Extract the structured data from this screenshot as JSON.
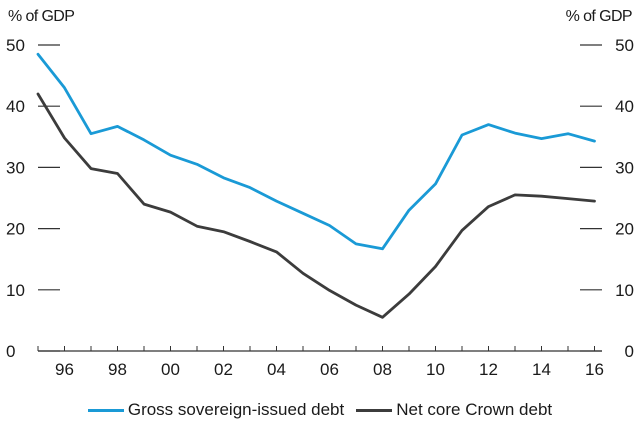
{
  "chart_data": {
    "type": "line",
    "title": "",
    "ylabel_left": "% of GDP",
    "ylabel_right": "% of GDP",
    "x": [
      1995,
      1996,
      1997,
      1998,
      1999,
      2000,
      2001,
      2002,
      2003,
      2004,
      2005,
      2006,
      2007,
      2008,
      2009,
      2010,
      2011,
      2012,
      2013,
      2014,
      2015,
      2016
    ],
    "x_tick_labels": [
      {
        "x": 1996,
        "label": "96"
      },
      {
        "x": 1998,
        "label": "98"
      },
      {
        "x": 2000,
        "label": "00"
      },
      {
        "x": 2002,
        "label": "02"
      },
      {
        "x": 2004,
        "label": "04"
      },
      {
        "x": 2006,
        "label": "06"
      },
      {
        "x": 2008,
        "label": "08"
      },
      {
        "x": 2010,
        "label": "10"
      },
      {
        "x": 2012,
        "label": "12"
      },
      {
        "x": 2014,
        "label": "14"
      },
      {
        "x": 2016,
        "label": "16"
      }
    ],
    "ylim": [
      0,
      50
    ],
    "y_ticks": [
      "0",
      "10",
      "20",
      "30",
      "40",
      "50"
    ],
    "grid": false,
    "legend_position": "bottom",
    "series": [
      {
        "name": "Gross sovereign-issued debt",
        "color": "#1a9ad6",
        "values": [
          48.5,
          43,
          35.5,
          36.7,
          34.5,
          32,
          30.5,
          28.3,
          26.7,
          24.5,
          22.5,
          20.5,
          17.5,
          16.7,
          23,
          27.3,
          35.3,
          37,
          35.6,
          34.7,
          35.5,
          34.3
        ]
      },
      {
        "name": "Net core Crown debt",
        "color": "#3c3c3c",
        "values": [
          42,
          34.8,
          29.8,
          29,
          24,
          22.7,
          20.4,
          19.5,
          17.9,
          16.2,
          12.7,
          9.9,
          7.5,
          5.5,
          9.3,
          13.8,
          19.7,
          23.6,
          25.5,
          25.3,
          24.9,
          24.5
        ]
      }
    ]
  }
}
